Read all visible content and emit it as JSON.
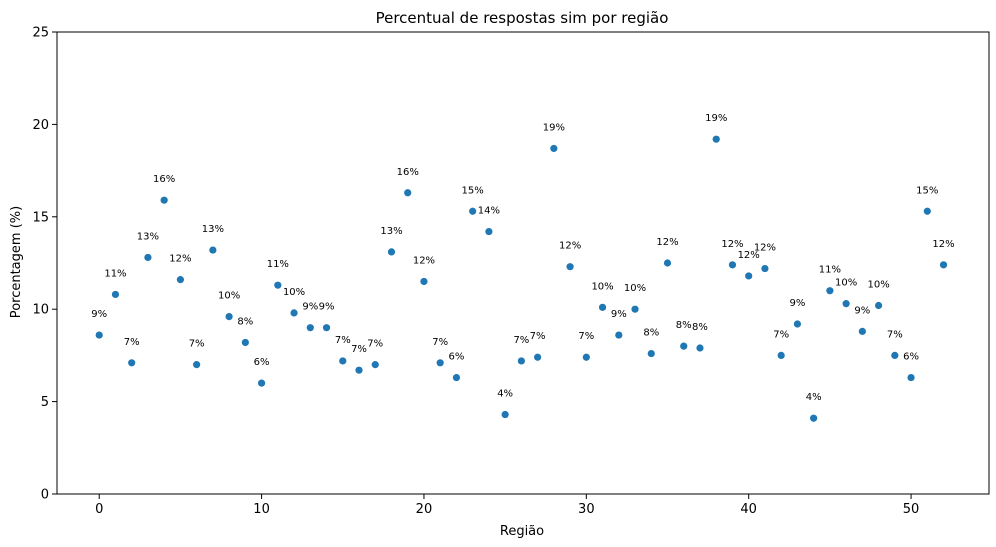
{
  "chart_data": {
    "type": "scatter",
    "title": "Percentual de respostas sim por região",
    "xlabel": "Região",
    "ylabel": "Porcentagem (%)",
    "xlim": [
      -2.6,
      54.8
    ],
    "ylim": [
      0,
      25
    ],
    "xticks": [
      0,
      10,
      20,
      30,
      40,
      50
    ],
    "yticks": [
      0,
      5,
      10,
      15,
      20,
      25
    ],
    "grid": false,
    "marker_color": "#1f77b4",
    "x": [
      0,
      1,
      2,
      3,
      4,
      5,
      6,
      7,
      8,
      9,
      10,
      11,
      12,
      13,
      14,
      15,
      16,
      17,
      18,
      19,
      20,
      21,
      22,
      23,
      24,
      25,
      26,
      27,
      28,
      29,
      30,
      31,
      32,
      33,
      34,
      35,
      36,
      37,
      38,
      39,
      40,
      41,
      42,
      43,
      44,
      45,
      46,
      47,
      48,
      49,
      50,
      51,
      52
    ],
    "y": [
      8.6,
      10.8,
      7.1,
      12.8,
      15.9,
      11.6,
      7.0,
      13.2,
      9.6,
      8.2,
      6.0,
      11.3,
      9.8,
      9.0,
      9.0,
      7.2,
      6.7,
      7.0,
      13.1,
      16.3,
      11.5,
      7.1,
      6.3,
      15.3,
      14.2,
      4.3,
      7.2,
      7.4,
      18.7,
      12.3,
      7.4,
      10.1,
      8.6,
      10.0,
      7.6,
      12.5,
      8.0,
      7.9,
      19.2,
      12.4,
      11.8,
      12.2,
      7.5,
      9.2,
      4.1,
      11.0,
      10.3,
      8.8,
      10.2,
      7.5,
      6.3,
      15.3,
      12.4
    ],
    "labels": [
      "9%",
      "11%",
      "7%",
      "13%",
      "16%",
      "12%",
      "7%",
      "13%",
      "10%",
      "8%",
      "6%",
      "11%",
      "10%",
      "9%",
      "9%",
      "7%",
      "7%",
      "7%",
      "13%",
      "16%",
      "12%",
      "7%",
      "6%",
      "15%",
      "14%",
      "4%",
      "7%",
      "7%",
      "19%",
      "12%",
      "7%",
      "10%",
      "9%",
      "10%",
      "8%",
      "12%",
      "8%",
      "8%",
      "19%",
      "12%",
      "12%",
      "12%",
      "7%",
      "9%",
      "4%",
      "11%",
      "10%",
      "9%",
      "10%",
      "7%",
      "6%",
      "15%",
      "12%"
    ]
  }
}
